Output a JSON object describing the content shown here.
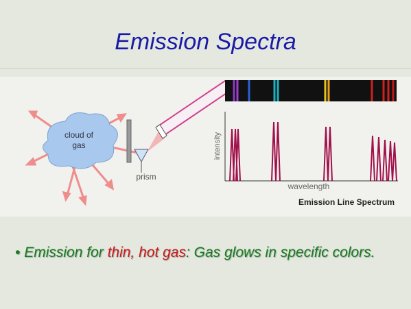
{
  "header": {
    "title": "Emission Spectra"
  },
  "diagram": {
    "cloud_label": [
      "cloud of",
      "gas"
    ],
    "prism_label": "prism",
    "y_axis_label": "intensity",
    "x_axis_label": "wavelength",
    "caption": "Emission Line Spectrum"
  },
  "body": {
    "bullet": [
      "Emission for ",
      "thin, hot gas",
      ": Gas glows in specific colors."
    ]
  }
}
